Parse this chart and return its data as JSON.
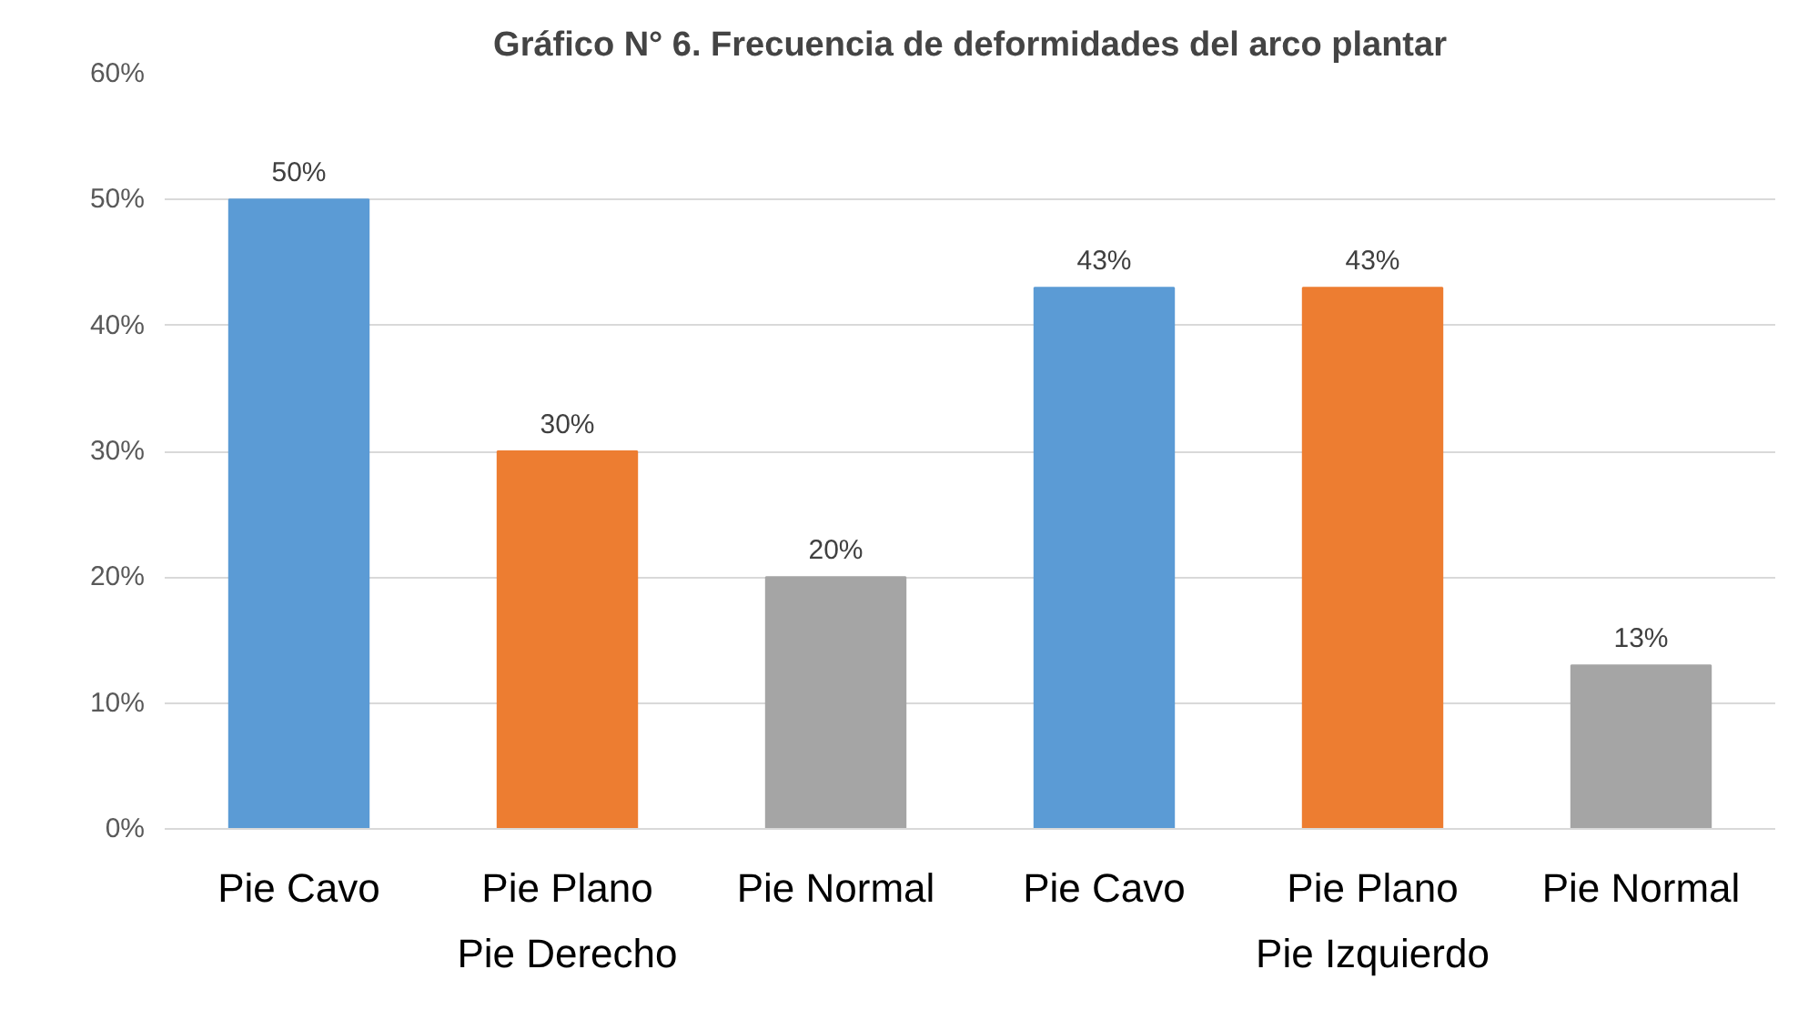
{
  "chart_data": {
    "type": "bar",
    "title": "Gráfico N° 6. Frecuencia de deformidades del arco plantar",
    "categories": [
      "Pie Cavo",
      "Pie Plano",
      "Pie Normal",
      "Pie Cavo",
      "Pie Plano",
      "Pie Normal"
    ],
    "values": [
      50,
      30,
      20,
      43,
      43,
      13
    ],
    "colors": [
      "#5b9bd5",
      "#ed7d31",
      "#a5a5a5",
      "#5b9bd5",
      "#ed7d31",
      "#a5a5a5"
    ],
    "value_labels": [
      "50%",
      "30%",
      "20%",
      "43%",
      "43%",
      "13%"
    ],
    "annotations": [
      "Pie Derecho",
      "Pie Izquierdo"
    ],
    "ylim": [
      0,
      60
    ],
    "yticks": [
      {
        "value": 0,
        "label": "0%"
      },
      {
        "value": 10,
        "label": "10%"
      },
      {
        "value": 20,
        "label": "20%"
      },
      {
        "value": 30,
        "label": "30%"
      },
      {
        "value": 40,
        "label": "40%"
      },
      {
        "value": 50,
        "label": "50%"
      },
      {
        "value": 60,
        "label": "60%"
      }
    ],
    "grid": "y"
  }
}
